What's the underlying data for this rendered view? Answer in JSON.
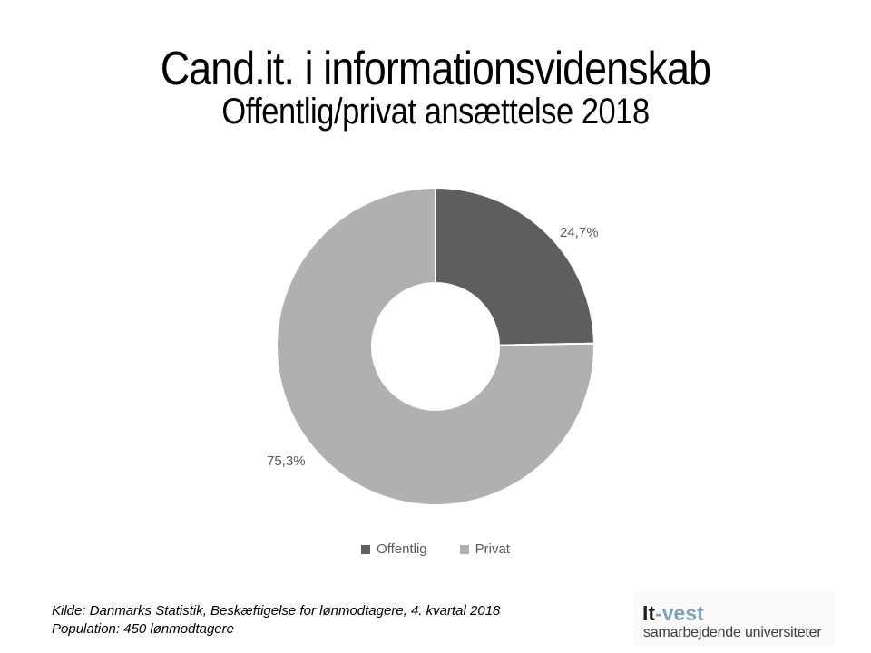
{
  "chart_data": {
    "type": "pie",
    "subtype": "donut",
    "title": "Cand.it. i informationsvidenskab",
    "subtitle": "Offentlig/privat ansættelse 2018",
    "categories": [
      "Offentlig",
      "Privat"
    ],
    "values": [
      24.7,
      75.3
    ],
    "value_labels": [
      "24,7%",
      "75,3%"
    ],
    "unit": "percent",
    "colors": [
      "#5e5e5e",
      "#b0b0b0"
    ],
    "label_color": "#595959",
    "donut_hole_ratio": 0.4,
    "start_angle_deg": 0,
    "direction": "clockwise",
    "legend_position": "bottom"
  },
  "footer": {
    "source": "Kilde: Danmarks Statistik, Beskæftigelse for lønmodtagere, 4. kvartal 2018",
    "population": "Population: 450 lønmodtagere"
  },
  "logo": {
    "brand_dark": "It",
    "brand_dash": "-",
    "brand_accent": "vest",
    "tagline": "samarbejdende universiteter",
    "colors": {
      "dark": "#1d1d1b",
      "dash": "#8da3b0",
      "accent": "#7da2ba",
      "tagline": "#3c3c3b"
    }
  }
}
